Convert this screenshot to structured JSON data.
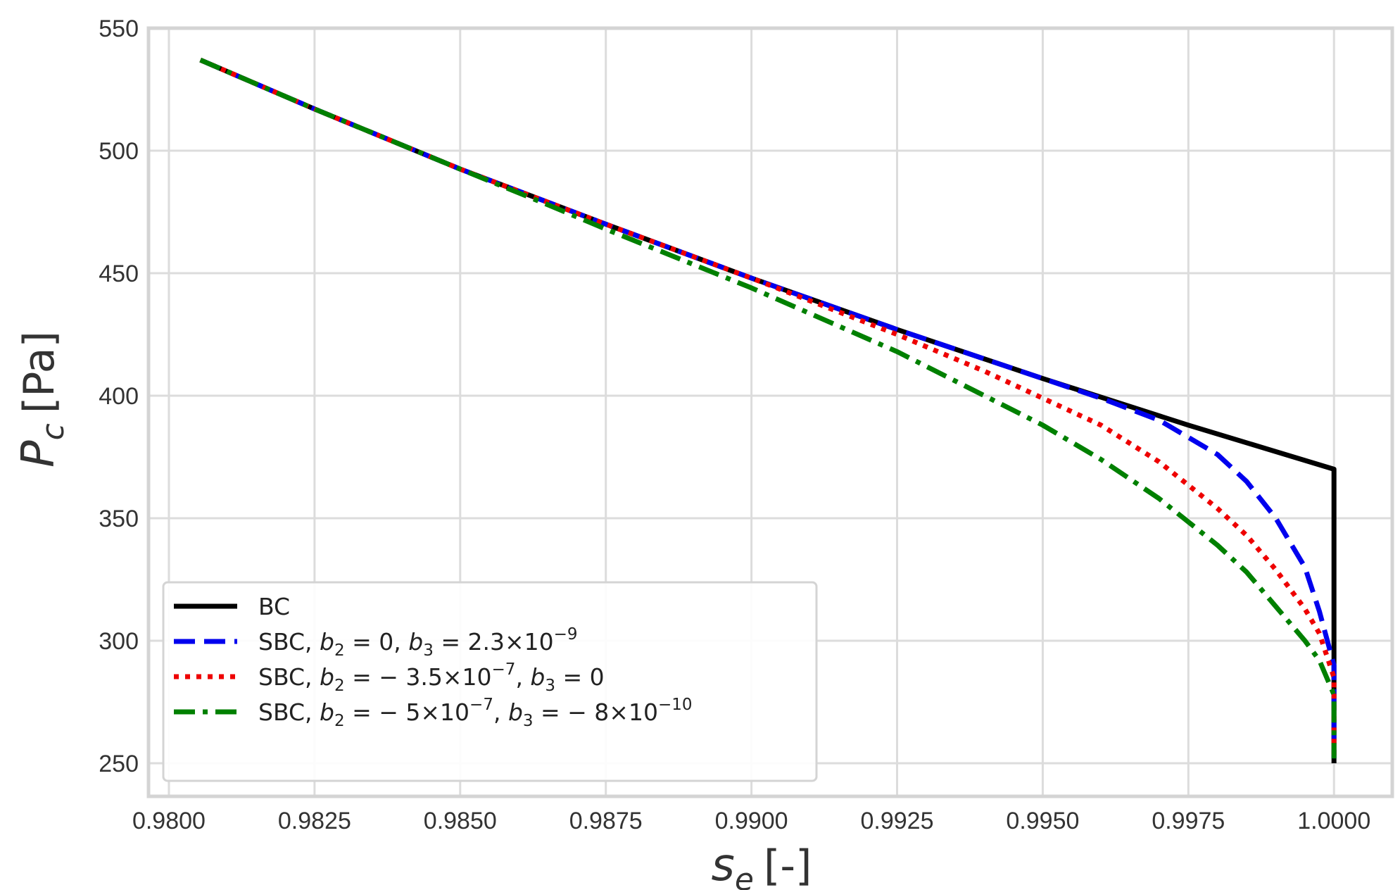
{
  "chart_data": {
    "type": "line",
    "xlabel": {
      "main": "s",
      "sub": "e",
      "unit": "[-]"
    },
    "ylabel": {
      "main": "P",
      "sub": "c",
      "unit": "[Pa]"
    },
    "xlim": [
      0.97965,
      1.001
    ],
    "ylim": [
      236.5,
      550
    ],
    "xticks": [
      0.98,
      0.9825,
      0.985,
      0.9875,
      0.99,
      0.9925,
      0.995,
      0.9975,
      1.0
    ],
    "xtick_labels": [
      "0.9800",
      "0.9825",
      "0.9850",
      "0.9875",
      "0.9900",
      "0.9925",
      "0.9950",
      "0.9975",
      "1.0000"
    ],
    "yticks": [
      250,
      300,
      350,
      400,
      450,
      500,
      550
    ],
    "ytick_labels": [
      "250",
      "300",
      "350",
      "400",
      "450",
      "500",
      "550"
    ],
    "grid": true,
    "legend_position": "lower-left",
    "series": [
      {
        "name": "BC",
        "legend": [
          {
            "t": "BC"
          }
        ],
        "color": "#000000",
        "dash": "solid",
        "x": [
          0.98054,
          0.9825,
          0.985,
          0.9875,
          0.99,
          0.9925,
          0.995,
          0.9975,
          1.0,
          1.0
        ],
        "y": [
          537,
          517,
          492.5,
          470,
          448,
          427,
          407,
          388,
          370,
          250
        ]
      },
      {
        "name": "SBC, b2 = 0, b3 = 2.3×10^-9",
        "legend": [
          {
            "t": "SBC, "
          },
          {
            "t": "b",
            "i": true
          },
          {
            "t": "2",
            "sub": true
          },
          {
            "t": " = 0, "
          },
          {
            "t": "b",
            "i": true
          },
          {
            "t": "3",
            "sub": true
          },
          {
            "t": " = 2.3×10"
          },
          {
            "t": "−9",
            "sup": true
          }
        ],
        "color": "#0000ee",
        "dash": "dashed",
        "x": [
          0.98054,
          0.9825,
          0.985,
          0.9875,
          0.99,
          0.9925,
          0.995,
          0.996,
          0.997,
          0.998,
          0.9985,
          0.999,
          0.9995,
          0.99975,
          1.0,
          1.0
        ],
        "y": [
          537,
          517,
          492.5,
          470,
          448,
          427,
          407,
          399,
          390,
          376,
          365,
          350,
          330,
          312,
          290,
          252
        ]
      },
      {
        "name": "SBC, b2 = −3.5×10^-7, b3 = 0",
        "legend": [
          {
            "t": "SBC, "
          },
          {
            "t": "b",
            "i": true
          },
          {
            "t": "2",
            "sub": true
          },
          {
            "t": " = − 3.5×10"
          },
          {
            "t": "−7",
            "sup": true
          },
          {
            "t": ", "
          },
          {
            "t": "b",
            "i": true
          },
          {
            "t": "3",
            "sub": true
          },
          {
            "t": " = 0"
          }
        ],
        "color": "#ee0000",
        "dash": "dotted",
        "x": [
          0.98054,
          0.9825,
          0.985,
          0.9875,
          0.99,
          0.9925,
          0.994,
          0.995,
          0.996,
          0.997,
          0.998,
          0.9985,
          0.999,
          0.9995,
          0.99975,
          1.0,
          1.0
        ],
        "y": [
          537,
          517,
          492.5,
          470,
          448,
          425,
          410,
          399,
          388,
          373,
          354,
          343,
          329,
          313,
          303,
          285,
          252
        ]
      },
      {
        "name": "SBC, b2 = −5×10^-7, b3 = −8×10^-10",
        "legend": [
          {
            "t": "SBC, "
          },
          {
            "t": "b",
            "i": true
          },
          {
            "t": "2",
            "sub": true
          },
          {
            "t": " = − 5×10"
          },
          {
            "t": "−7",
            "sup": true
          },
          {
            "t": ", "
          },
          {
            "t": "b",
            "i": true
          },
          {
            "t": "3",
            "sub": true
          },
          {
            "t": " = − 8×10"
          },
          {
            "t": "−10",
            "sup": true
          }
        ],
        "color": "#008000",
        "dash": "dashdot",
        "x": [
          0.98054,
          0.9825,
          0.985,
          0.9865,
          0.9875,
          0.99,
          0.9925,
          0.995,
          0.996,
          0.997,
          0.998,
          0.9985,
          0.999,
          0.9995,
          0.99975,
          1.0,
          1.0
        ],
        "y": [
          537,
          517,
          492.5,
          478,
          468,
          444,
          418,
          388,
          374,
          358,
          339,
          328,
          314,
          300,
          292,
          278,
          252
        ]
      }
    ]
  }
}
